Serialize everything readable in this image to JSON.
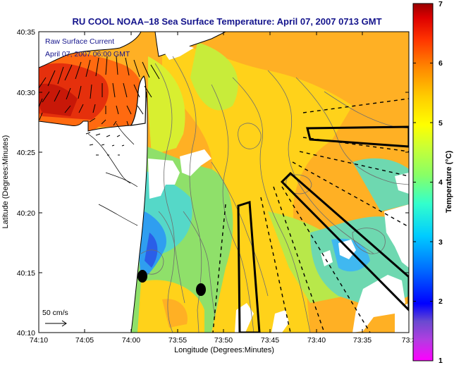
{
  "title": "RU COOL  NOAA–18  Sea Surface Temperature:  April 07, 2007 0713 GMT",
  "legend": {
    "line1": "Raw Surface Current",
    "line2": "April 07, 2007 06:00 GMT"
  },
  "scale_label": "50 cm/s",
  "x_axis": {
    "label": "Longitude (Degrees:Minutes)",
    "ticks": [
      "74:10",
      "74:05",
      "74:00",
      "73:55",
      "73:50",
      "73:45",
      "73:40",
      "73:35",
      "73:3"
    ]
  },
  "y_axis": {
    "label": "Latitude (Degrees:Minutes)",
    "ticks": [
      "40:35",
      "40:30",
      "40:25",
      "40:20",
      "40:15",
      "40:10"
    ]
  },
  "colorbar": {
    "label": "Temperature (°C)",
    "ticks": [
      "7",
      "6",
      "5",
      "4",
      "3",
      "2",
      "1"
    ],
    "range": [
      1,
      7
    ],
    "colors": [
      "#ff00ff",
      "#8a3ad6",
      "#0000ff",
      "#00aaff",
      "#00ffff",
      "#7dff7a",
      "#ffff00",
      "#ffb000",
      "#ff6000",
      "#ff0000",
      "#a00000"
    ]
  },
  "colors": {
    "title": "#14148c",
    "land": "#ffffff",
    "coastline": "#000000",
    "bathymetry": "#6e6e6e"
  }
}
